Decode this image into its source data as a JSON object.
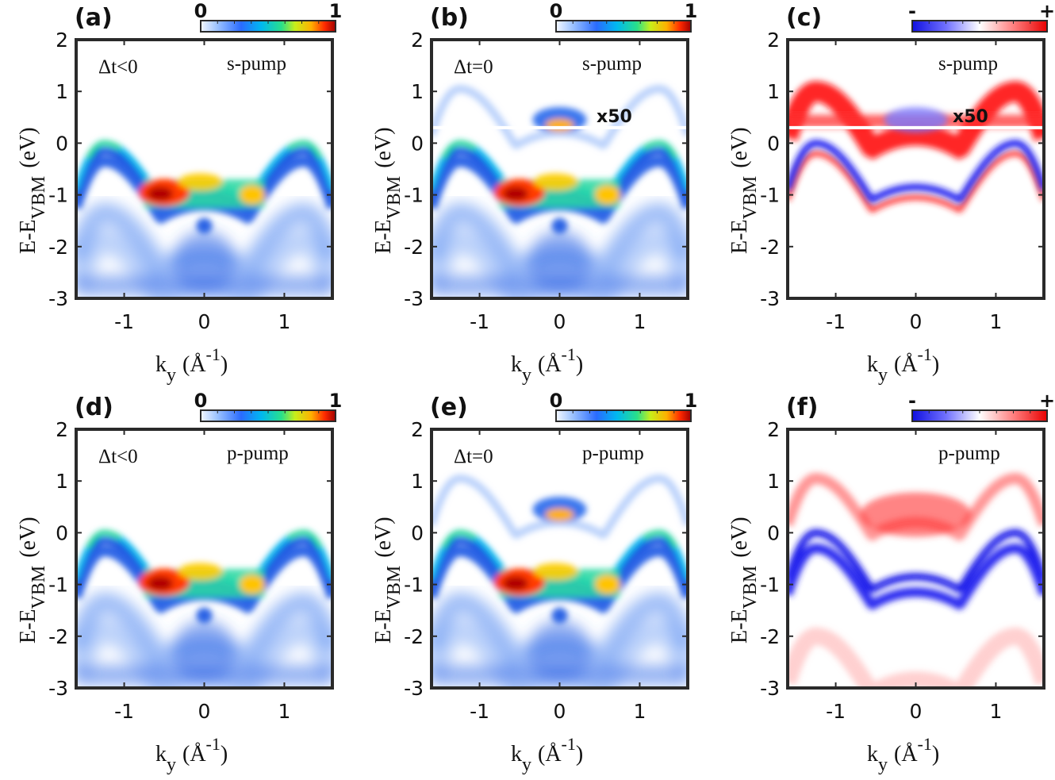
{
  "chart_data": [
    {
      "type": "heatmap",
      "panel_label": "(a)",
      "delay_label": "Δt<0",
      "pump_label": "s-pump",
      "inset_note": "",
      "colormap": "jet",
      "cbar_left": "0",
      "cbar_right": "1",
      "x_range": [
        -1.6,
        1.6
      ],
      "y_range": [
        -3,
        2
      ],
      "xticks": [
        "-1",
        "0",
        "1"
      ],
      "yticks": [
        "2",
        "1",
        "0",
        "-1",
        "-2",
        "-3"
      ],
      "xlabel_main": "k",
      "xlabel_sub": "y",
      "xlabel_unit": "(Å",
      "xlabel_sup": "-1",
      "xlabel_close": ")",
      "ylabel_main": "E-E",
      "ylabel_sub": "VBM",
      "ylabel_unit": "(eV)"
    },
    {
      "type": "heatmap",
      "panel_label": "(b)",
      "delay_label": "Δt=0",
      "pump_label": "s-pump",
      "inset_note": "x50",
      "colormap": "jet",
      "cbar_left": "0",
      "cbar_right": "1",
      "x_range": [
        -1.6,
        1.6
      ],
      "y_range": [
        -3,
        2
      ],
      "xticks": [
        "-1",
        "0",
        "1"
      ],
      "yticks": [
        "2",
        "1",
        "0",
        "-1",
        "-2",
        "-3"
      ],
      "xlabel_main": "k",
      "xlabel_sub": "y",
      "xlabel_unit": "(Å",
      "xlabel_sup": "-1",
      "xlabel_close": ")",
      "ylabel_main": "E-E",
      "ylabel_sub": "VBM",
      "ylabel_unit": "(eV)"
    },
    {
      "type": "heatmap",
      "panel_label": "(c)",
      "delay_label": "",
      "pump_label": "s-pump",
      "inset_note": "x50",
      "colormap": "diverging-blue-white-red",
      "cbar_left": "-",
      "cbar_right": "+",
      "x_range": [
        -1.6,
        1.6
      ],
      "y_range": [
        -3,
        2
      ],
      "xticks": [
        "-1",
        "0",
        "1"
      ],
      "yticks": [
        "2",
        "1",
        "0",
        "-1",
        "-2",
        "-3"
      ],
      "xlabel_main": "k",
      "xlabel_sub": "y",
      "xlabel_unit": "(Å",
      "xlabel_sup": "-1",
      "xlabel_close": ")",
      "ylabel_main": "E-E",
      "ylabel_sub": "VBM",
      "ylabel_unit": "(eV)"
    },
    {
      "type": "heatmap",
      "panel_label": "(d)",
      "delay_label": "Δt<0",
      "pump_label": "p-pump",
      "inset_note": "",
      "colormap": "jet",
      "cbar_left": "0",
      "cbar_right": "1",
      "x_range": [
        -1.6,
        1.6
      ],
      "y_range": [
        -3,
        2
      ],
      "xticks": [
        "-1",
        "0",
        "1"
      ],
      "yticks": [
        "2",
        "1",
        "0",
        "-1",
        "-2",
        "-3"
      ],
      "xlabel_main": "k",
      "xlabel_sub": "y",
      "xlabel_unit": "(Å",
      "xlabel_sup": "-1",
      "xlabel_close": ")",
      "ylabel_main": "E-E",
      "ylabel_sub": "VBM",
      "ylabel_unit": "(eV)"
    },
    {
      "type": "heatmap",
      "panel_label": "(e)",
      "delay_label": "Δt=0",
      "pump_label": "p-pump",
      "inset_note": "",
      "colormap": "jet",
      "cbar_left": "0",
      "cbar_right": "1",
      "x_range": [
        -1.6,
        1.6
      ],
      "y_range": [
        -3,
        2
      ],
      "xticks": [
        "-1",
        "0",
        "1"
      ],
      "yticks": [
        "2",
        "1",
        "0",
        "-1",
        "-2",
        "-3"
      ],
      "xlabel_main": "k",
      "xlabel_sub": "y",
      "xlabel_unit": "(Å",
      "xlabel_sup": "-1",
      "xlabel_close": ")",
      "ylabel_main": "E-E",
      "ylabel_sub": "VBM",
      "ylabel_unit": "(eV)"
    },
    {
      "type": "heatmap",
      "panel_label": "(f)",
      "delay_label": "",
      "pump_label": "p-pump",
      "inset_note": "",
      "colormap": "diverging-blue-white-red",
      "cbar_left": "-",
      "cbar_right": "+",
      "x_range": [
        -1.6,
        1.6
      ],
      "y_range": [
        -3,
        2
      ],
      "xticks": [
        "-1",
        "0",
        "1"
      ],
      "yticks": [
        "2",
        "1",
        "0",
        "-1",
        "-2",
        "-3"
      ],
      "xlabel_main": "k",
      "xlabel_sub": "y",
      "xlabel_unit": "(Å",
      "xlabel_sup": "-1",
      "xlabel_close": ")",
      "ylabel_main": "E-E",
      "ylabel_sub": "VBM",
      "ylabel_unit": "(eV)"
    }
  ]
}
